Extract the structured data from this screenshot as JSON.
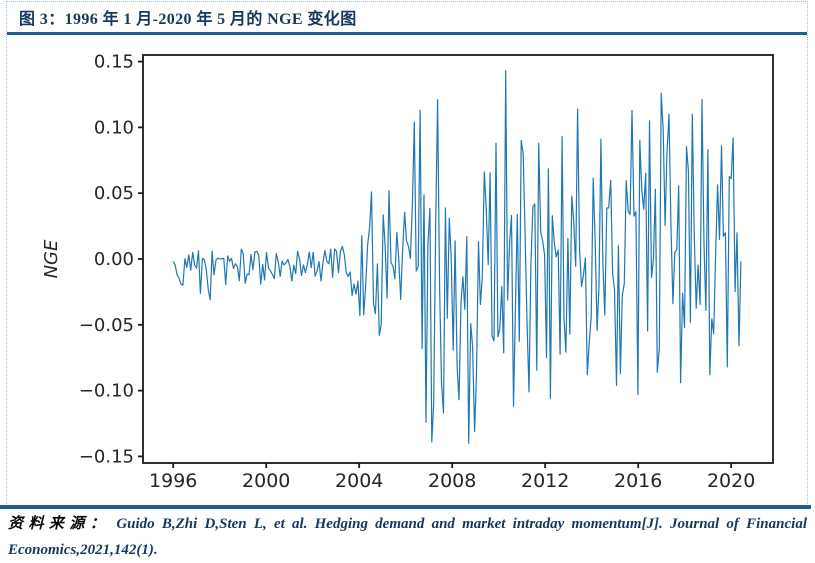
{
  "figure": {
    "title": "图 3：1996 年 1 月-2020 年 5 月的 NGE 变化图"
  },
  "source": {
    "label": "资料来源：",
    "line1": "Guido B,Zhi D,Sten L, et al. Hedging demand and market intraday momentum[J]. Journal of Financial",
    "line2": "Economics,2021,142(1)."
  },
  "colors": {
    "line": "#1f77b4",
    "rule": "#1d5f91",
    "dotted_border": "#9cc2e5",
    "title_text": "#17365d",
    "citation_text": "#17365d",
    "source_label": "#0a0a0a",
    "axis": "#1a1a1a",
    "tick_text": "#262626",
    "plot_background": "#ffffff"
  },
  "chart_data": {
    "type": "line",
    "title": "",
    "xlabel": "",
    "ylabel": "NGE",
    "legend": null,
    "grid": false,
    "x_ticks": [
      {
        "value": 1996,
        "label": "1996"
      },
      {
        "value": 2000,
        "label": "2000"
      },
      {
        "value": 2004,
        "label": "2004"
      },
      {
        "value": 2008,
        "label": "2008"
      },
      {
        "value": 2012,
        "label": "2012"
      },
      {
        "value": 2016,
        "label": "2016"
      },
      {
        "value": 2020,
        "label": "2020"
      }
    ],
    "y_ticks": [
      {
        "value": 0.15,
        "label": "0.15"
      },
      {
        "value": 0.1,
        "label": "0.10"
      },
      {
        "value": 0.05,
        "label": "0.05"
      },
      {
        "value": 0.0,
        "label": "0.00"
      },
      {
        "value": -0.05,
        "label": "−0.05"
      },
      {
        "value": -0.1,
        "label": "−0.10"
      },
      {
        "value": -0.15,
        "label": "−0.15"
      }
    ],
    "xlim": [
      1994.7,
      2021.8
    ],
    "ylim": [
      -0.155,
      0.155
    ],
    "x_data_range": [
      1996.0,
      2020.42
    ],
    "n_points": 293,
    "seed": 12345,
    "summary": "Monthly NGE series: tight noise band of roughly -0.02 to +0.012 from 1996 through 2003, volatility expands after 2004, crisis-era deep negative spikes near -0.14 in 2007-2009, maximum spike +0.143 around 2010, then persistent high volatility between about -0.11 and +0.126 through May 2020.",
    "envelope": [
      {
        "x": 1996.0,
        "pos": 0.012,
        "neg": 0.02,
        "mid": -0.004
      },
      {
        "x": 1997.5,
        "pos": 0.013,
        "neg": 0.026,
        "mid": -0.005
      },
      {
        "x": 1999.0,
        "pos": 0.012,
        "neg": 0.017,
        "mid": -0.003
      },
      {
        "x": 2001.0,
        "pos": 0.011,
        "neg": 0.017,
        "mid": -0.003
      },
      {
        "x": 2003.0,
        "pos": 0.013,
        "neg": 0.019,
        "mid": -0.003
      },
      {
        "x": 2003.8,
        "pos": 0.022,
        "neg": 0.032,
        "mid": -0.002
      },
      {
        "x": 2004.3,
        "pos": 0.042,
        "neg": 0.05,
        "mid": 0
      },
      {
        "x": 2005.0,
        "pos": 0.05,
        "neg": 0.056,
        "mid": 0
      },
      {
        "x": 2005.7,
        "pos": 0.042,
        "neg": 0.047,
        "mid": 0
      },
      {
        "x": 2006.4,
        "pos": 0.085,
        "neg": 0.095,
        "mid": 0
      },
      {
        "x": 2007.2,
        "pos": 0.085,
        "neg": 0.125,
        "mid": -0.01
      },
      {
        "x": 2008.0,
        "pos": 0.06,
        "neg": 0.105,
        "mid": -0.012
      },
      {
        "x": 2008.8,
        "pos": 0.052,
        "neg": 0.135,
        "mid": -0.015
      },
      {
        "x": 2009.4,
        "pos": 0.065,
        "neg": 0.085,
        "mid": 0
      },
      {
        "x": 2010.0,
        "pos": 0.09,
        "neg": 0.08,
        "mid": 0
      },
      {
        "x": 2010.7,
        "pos": 0.082,
        "neg": 0.105,
        "mid": 0
      },
      {
        "x": 2011.5,
        "pos": 0.08,
        "neg": 0.095,
        "mid": 0
      },
      {
        "x": 2012.2,
        "pos": 0.068,
        "neg": 0.1,
        "mid": 0
      },
      {
        "x": 2013.0,
        "pos": 0.085,
        "neg": 0.08,
        "mid": 0
      },
      {
        "x": 2013.6,
        "pos": 0.1,
        "neg": 0.08,
        "mid": 0
      },
      {
        "x": 2014.3,
        "pos": 0.088,
        "neg": 0.072,
        "mid": 0
      },
      {
        "x": 2015.1,
        "pos": 0.08,
        "neg": 0.09,
        "mid": 0
      },
      {
        "x": 2015.9,
        "pos": 0.105,
        "neg": 0.1,
        "mid": 0
      },
      {
        "x": 2016.6,
        "pos": 0.105,
        "neg": 0.082,
        "mid": 0
      },
      {
        "x": 2017.1,
        "pos": 0.118,
        "neg": 0.088,
        "mid": 0
      },
      {
        "x": 2017.8,
        "pos": 0.1,
        "neg": 0.092,
        "mid": 0
      },
      {
        "x": 2018.6,
        "pos": 0.11,
        "neg": 0.082,
        "mid": 0
      },
      {
        "x": 2019.3,
        "pos": 0.082,
        "neg": 0.088,
        "mid": 0
      },
      {
        "x": 2020.0,
        "pos": 0.09,
        "neg": 0.068,
        "mid": 0
      },
      {
        "x": 2020.42,
        "pos": 0.05,
        "neg": 0.045,
        "mid": 0
      }
    ],
    "spikes": [
      {
        "x": 1997.6,
        "y": -0.031
      },
      {
        "x": 2004.05,
        "y": -0.043
      },
      {
        "x": 2004.55,
        "y": 0.051
      },
      {
        "x": 2004.85,
        "y": -0.058
      },
      {
        "x": 2005.3,
        "y": 0.052
      },
      {
        "x": 2006.35,
        "y": 0.104
      },
      {
        "x": 2006.62,
        "y": 0.113
      },
      {
        "x": 2006.85,
        "y": -0.124
      },
      {
        "x": 2007.15,
        "y": -0.139
      },
      {
        "x": 2007.38,
        "y": 0.121
      },
      {
        "x": 2007.62,
        "y": -0.117
      },
      {
        "x": 2008.3,
        "y": -0.107
      },
      {
        "x": 2008.72,
        "y": -0.14
      },
      {
        "x": 2008.95,
        "y": -0.131
      },
      {
        "x": 2009.35,
        "y": 0.066
      },
      {
        "x": 2009.9,
        "y": 0.088
      },
      {
        "x": 2010.28,
        "y": 0.143
      },
      {
        "x": 2010.6,
        "y": -0.112
      },
      {
        "x": 2010.95,
        "y": 0.09
      },
      {
        "x": 2011.3,
        "y": -0.101
      },
      {
        "x": 2011.75,
        "y": 0.088
      },
      {
        "x": 2012.25,
        "y": -0.106
      },
      {
        "x": 2012.7,
        "y": 0.093
      },
      {
        "x": 2013.4,
        "y": 0.114
      },
      {
        "x": 2013.85,
        "y": -0.088
      },
      {
        "x": 2014.4,
        "y": 0.091
      },
      {
        "x": 2015.05,
        "y": -0.096
      },
      {
        "x": 2015.75,
        "y": 0.113
      },
      {
        "x": 2015.95,
        "y": -0.103
      },
      {
        "x": 2016.5,
        "y": 0.105
      },
      {
        "x": 2016.8,
        "y": -0.086
      },
      {
        "x": 2017.0,
        "y": 0.126
      },
      {
        "x": 2017.3,
        "y": 0.11
      },
      {
        "x": 2017.85,
        "y": -0.094
      },
      {
        "x": 2018.3,
        "y": 0.11
      },
      {
        "x": 2018.77,
        "y": 0.121
      },
      {
        "x": 2019.1,
        "y": -0.088
      },
      {
        "x": 2019.55,
        "y": 0.086
      },
      {
        "x": 2019.85,
        "y": -0.082
      },
      {
        "x": 2020.1,
        "y": 0.092
      },
      {
        "x": 2020.3,
        "y": -0.066
      }
    ]
  }
}
